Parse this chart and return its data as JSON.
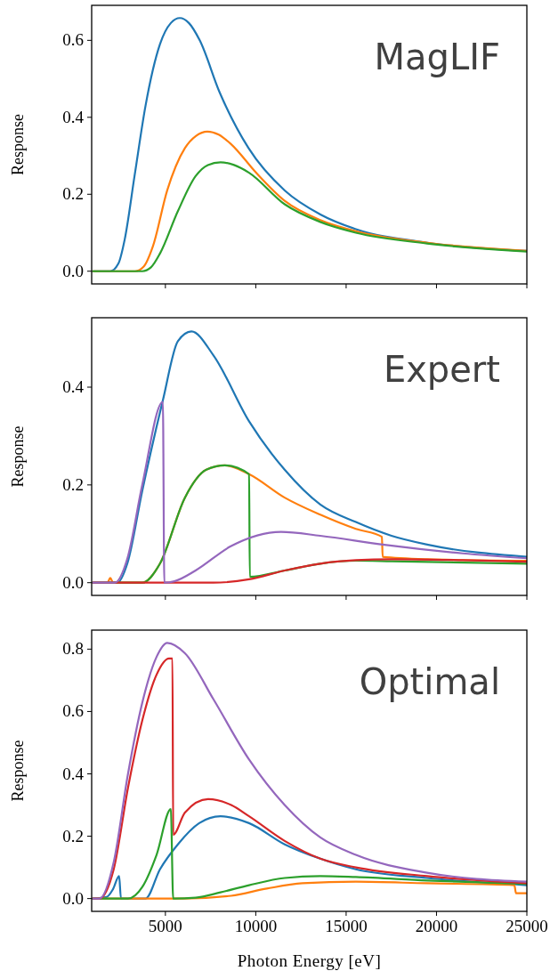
{
  "chart_data": [
    {
      "type": "line",
      "title": "MagLIF",
      "ylabel": "Response",
      "xlim": [
        920,
        25000
      ],
      "ylim": [
        -0.033,
        0.691
      ],
      "xticks": [
        5000,
        10000,
        15000,
        20000,
        25000
      ],
      "yticks": [
        {
          "value": 0,
          "label": "0.0"
        },
        {
          "value": 0.2,
          "label": "0.2"
        },
        {
          "value": 0.4,
          "label": "0.4"
        },
        {
          "value": 0.6,
          "label": "0.6"
        }
      ],
      "tick_labels": "y",
      "grid": false,
      "series": [
        {
          "color": "#1f77b4",
          "x": [
            1000,
            1950,
            2400,
            2750,
            3300,
            3900,
            4700,
            5300,
            5800,
            6300,
            6900,
            8000,
            9600,
            11600,
            13600,
            15500,
            19500,
            25000
          ],
          "values": [
            0,
            0,
            0.02,
            0.083,
            0.25,
            0.43,
            0.59,
            0.645,
            0.658,
            0.645,
            0.6,
            0.465,
            0.32,
            0.21,
            0.147,
            0.11,
            0.074,
            0.053
          ]
        },
        {
          "color": "#ff7f0e",
          "x": [
            1000,
            3320,
            3800,
            4310,
            5100,
            6080,
            6700,
            7320,
            7950,
            8640,
            10020,
            11600,
            13570,
            15540,
            19480,
            25000
          ],
          "values": [
            0,
            0,
            0.012,
            0.065,
            0.21,
            0.32,
            0.352,
            0.363,
            0.355,
            0.33,
            0.256,
            0.183,
            0.133,
            0.104,
            0.074,
            0.053
          ]
        },
        {
          "color": "#2ca02c",
          "x": [
            1000,
            3720,
            4200,
            4700,
            5690,
            6670,
            7350,
            8050,
            8800,
            9630,
            11600,
            13570,
            15540,
            19480,
            25000
          ],
          "values": [
            0,
            0,
            0.01,
            0.046,
            0.156,
            0.247,
            0.276,
            0.283,
            0.276,
            0.256,
            0.174,
            0.128,
            0.1,
            0.072,
            0.051
          ]
        }
      ]
    },
    {
      "type": "line",
      "title": "Expert",
      "ylabel": "Response",
      "xlim": [
        920,
        25000
      ],
      "ylim": [
        -0.026,
        0.542
      ],
      "xticks": [
        5000,
        10000,
        15000,
        20000,
        25000
      ],
      "yticks": [
        {
          "value": 0,
          "label": "0.0"
        },
        {
          "value": 0.2,
          "label": "0.2"
        },
        {
          "value": 0.4,
          "label": "0.4"
        }
      ],
      "tick_labels": "y",
      "grid": false,
      "series": [
        {
          "color": "#1f77b4",
          "x": [
            1000,
            2340,
            2900,
            3720,
            4860,
            5690,
            6440,
            7660,
            9630,
            11600,
            13570,
            15540,
            17510,
            19480,
            25000
          ],
          "values": [
            0,
            0,
            0.04,
            0.188,
            0.373,
            0.494,
            0.514,
            0.465,
            0.33,
            0.231,
            0.16,
            0.124,
            0.096,
            0.078,
            0.053
          ]
        },
        {
          "color": "#ff7f0e",
          "x": [
            1000,
            1800,
            1950,
            2100,
            3720,
            4700,
            6080,
            7260,
            8290,
            9630,
            11600,
            13570,
            15540,
            16980,
            17020,
            19480,
            25000
          ],
          "values": [
            0,
            0,
            0.01,
            0,
            0,
            0.039,
            0.174,
            0.231,
            0.24,
            0.222,
            0.174,
            0.139,
            0.11,
            0.094,
            0.053,
            0.048,
            0.045
          ]
        },
        {
          "color": "#2ca02c",
          "x": [
            1000,
            3720,
            4700,
            6080,
            7260,
            8290,
            9630,
            9670,
            11600,
            13570,
            15540,
            17510,
            25000
          ],
          "values": [
            0,
            0,
            0.039,
            0.174,
            0.231,
            0.24,
            0.222,
            0.012,
            0.025,
            0.039,
            0.045,
            0.044,
            0.039
          ]
        },
        {
          "color": "#d62728",
          "x": [
            1000,
            7660,
            9630,
            11600,
            13570,
            15540,
            17510,
            21450,
            25000
          ],
          "values": [
            0,
            0,
            0.007,
            0.025,
            0.039,
            0.046,
            0.048,
            0.046,
            0.043
          ]
        },
        {
          "color": "#9467bd",
          "x": [
            1000,
            2200,
            2900,
            3720,
            4860,
            4940,
            5500,
            6670,
            8640,
            11400,
            13570,
            17020,
            21450,
            25000
          ],
          "values": [
            0,
            0,
            0.05,
            0.2,
            0.37,
            0,
            0.003,
            0.025,
            0.075,
            0.104,
            0.096,
            0.078,
            0.06,
            0.05
          ]
        }
      ]
    },
    {
      "type": "line",
      "title": "Optimal",
      "ylabel": "Response",
      "xlabel": "Photon Energy [eV]",
      "xlim": [
        920,
        25000
      ],
      "ylim": [
        -0.041,
        0.861
      ],
      "xticks": [
        5000,
        10000,
        15000,
        20000,
        25000
      ],
      "yticks": [
        {
          "value": 0,
          "label": "0.0"
        },
        {
          "value": 0.2,
          "label": "0.2"
        },
        {
          "value": 0.4,
          "label": "0.4"
        },
        {
          "value": 0.6,
          "label": "0.6"
        },
        {
          "value": 0.8,
          "label": "0.8"
        }
      ],
      "grid": false,
      "series": [
        {
          "color": "#1f77b4",
          "x": [
            1000,
            1750,
            2100,
            2440,
            2540,
            3900,
            4700,
            5690,
            6870,
            8050,
            9630,
            11600,
            13570,
            15540,
            19480,
            25000
          ],
          "values": [
            0,
            0.005,
            0.03,
            0.072,
            0,
            0,
            0.094,
            0.174,
            0.242,
            0.264,
            0.242,
            0.174,
            0.128,
            0.094,
            0.066,
            0.043
          ]
        },
        {
          "color": "#ff7f0e",
          "x": [
            1000,
            6000,
            8640,
            10610,
            12580,
            15540,
            19480,
            24310,
            24400,
            25000
          ],
          "values": [
            0,
            0,
            0.009,
            0.032,
            0.049,
            0.054,
            0.049,
            0.043,
            0.017,
            0.017
          ]
        },
        {
          "color": "#2ca02c",
          "x": [
            1000,
            2930,
            3720,
            4510,
            5300,
            5430,
            6670,
            8050,
            9630,
            11600,
            13570,
            15540,
            19480,
            25000
          ],
          "values": [
            0,
            0,
            0.037,
            0.14,
            0.287,
            0,
            0.003,
            0.02,
            0.043,
            0.066,
            0.072,
            0.069,
            0.058,
            0.047
          ]
        },
        {
          "color": "#d62728",
          "x": [
            1000,
            1350,
            2140,
            2930,
            3720,
            4510,
            5200,
            5390,
            5430,
            6080,
            7360,
            8640,
            9630,
            11600,
            13570,
            15540,
            19480,
            25000
          ],
          "values": [
            0,
            0,
            0.094,
            0.355,
            0.571,
            0.718,
            0.77,
            0.77,
            0.205,
            0.276,
            0.319,
            0.3,
            0.264,
            0.185,
            0.128,
            0.1,
            0.072,
            0.049
          ]
        },
        {
          "color": "#9467bd",
          "x": [
            1000,
            1350,
            2140,
            2930,
            3720,
            4510,
            5100,
            6080,
            7660,
            9630,
            11600,
            13570,
            15540,
            19480,
            25000
          ],
          "values": [
            0,
            0,
            0.117,
            0.4,
            0.628,
            0.775,
            0.82,
            0.787,
            0.639,
            0.446,
            0.3,
            0.196,
            0.14,
            0.083,
            0.054
          ]
        }
      ]
    }
  ]
}
